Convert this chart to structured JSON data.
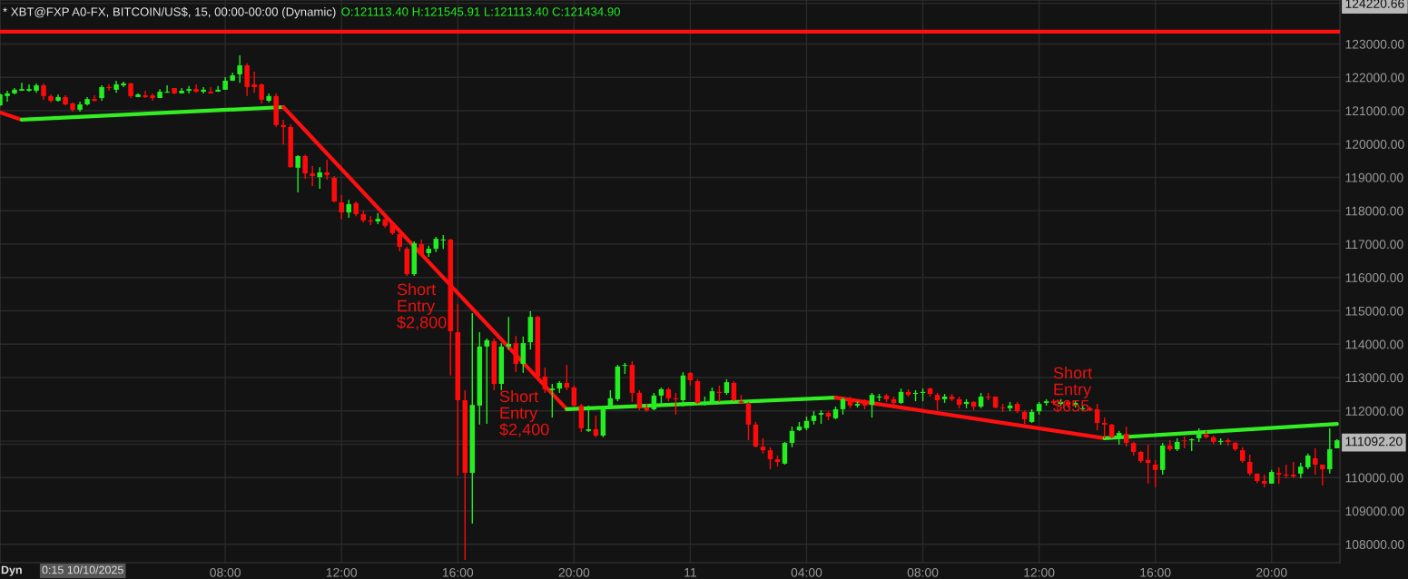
{
  "chart_data": {
    "type": "candlestick",
    "title": "* XBT@FXP A0-FX, BITCOIN/US$, 15, 00:00-00:00 (Dynamic)",
    "subtitle": "O:121113.40 H:121545.91 L:121113.40 C:121434.90",
    "x": [
      "2025-10-10T00:15",
      "2025-10-10T00:30",
      "2025-10-10T00:45",
      "2025-10-10T01:00",
      "2025-10-10T01:15",
      "2025-10-10T01:30",
      "2025-10-10T01:45",
      "2025-10-10T02:00",
      "2025-10-10T02:15",
      "2025-10-10T02:30",
      "2025-10-10T02:45",
      "2025-10-10T03:00",
      "2025-10-10T03:15",
      "2025-10-10T03:30",
      "2025-10-10T03:45",
      "2025-10-10T04:00",
      "2025-10-10T04:15",
      "2025-10-10T04:30",
      "2025-10-10T04:45",
      "2025-10-10T05:00",
      "2025-10-10T05:15",
      "2025-10-10T05:30",
      "2025-10-10T05:45",
      "2025-10-10T06:00",
      "2025-10-10T06:15",
      "2025-10-10T06:30",
      "2025-10-10T06:45",
      "2025-10-10T07:00",
      "2025-10-10T07:15",
      "2025-10-10T07:30",
      "2025-10-10T07:45",
      "2025-10-10T08:00",
      "2025-10-10T08:15",
      "2025-10-10T08:30",
      "2025-10-10T08:45",
      "2025-10-10T09:00",
      "2025-10-10T09:15",
      "2025-10-10T09:30",
      "2025-10-10T09:45",
      "2025-10-10T10:00",
      "2025-10-10T10:15",
      "2025-10-10T10:30",
      "2025-10-10T10:45",
      "2025-10-10T11:00",
      "2025-10-10T11:15",
      "2025-10-10T11:30",
      "2025-10-10T11:45",
      "2025-10-10T12:00",
      "2025-10-10T12:15",
      "2025-10-10T12:30",
      "2025-10-10T12:45",
      "2025-10-10T13:00",
      "2025-10-10T13:15",
      "2025-10-10T13:30",
      "2025-10-10T13:45",
      "2025-10-10T14:00",
      "2025-10-10T14:15",
      "2025-10-10T14:30",
      "2025-10-10T14:45",
      "2025-10-10T15:00",
      "2025-10-10T15:15",
      "2025-10-10T15:30",
      "2025-10-10T15:45",
      "2025-10-10T16:00",
      "2025-10-10T16:15",
      "2025-10-10T16:30",
      "2025-10-10T16:45",
      "2025-10-10T17:00",
      "2025-10-10T17:15",
      "2025-10-10T17:30",
      "2025-10-10T17:45",
      "2025-10-10T18:00",
      "2025-10-10T18:15",
      "2025-10-10T18:30",
      "2025-10-10T18:45",
      "2025-10-10T19:00",
      "2025-10-10T19:15",
      "2025-10-10T19:30",
      "2025-10-10T19:45",
      "2025-10-10T20:00",
      "2025-10-10T20:15",
      "2025-10-10T20:30",
      "2025-10-10T20:45",
      "2025-10-10T21:00",
      "2025-10-10T21:15",
      "2025-10-10T21:30",
      "2025-10-10T21:45",
      "2025-10-10T22:00",
      "2025-10-10T22:15",
      "2025-10-10T22:30",
      "2025-10-10T22:45",
      "2025-10-10T23:00",
      "2025-10-10T23:15",
      "2025-10-10T23:30",
      "2025-10-10T23:45",
      "2025-10-11T00:00",
      "2025-10-11T00:15",
      "2025-10-11T00:30",
      "2025-10-11T00:45",
      "2025-10-11T01:00",
      "2025-10-11T01:15",
      "2025-10-11T01:30",
      "2025-10-11T01:45",
      "2025-10-11T02:00",
      "2025-10-11T02:15",
      "2025-10-11T02:30",
      "2025-10-11T02:45",
      "2025-10-11T03:00",
      "2025-10-11T03:15",
      "2025-10-11T03:30",
      "2025-10-11T03:45",
      "2025-10-11T04:00",
      "2025-10-11T04:15",
      "2025-10-11T04:30",
      "2025-10-11T04:45",
      "2025-10-11T05:00",
      "2025-10-11T05:15",
      "2025-10-11T05:30",
      "2025-10-11T05:45",
      "2025-10-11T06:00",
      "2025-10-11T06:15",
      "2025-10-11T06:30",
      "2025-10-11T06:45",
      "2025-10-11T07:00",
      "2025-10-11T07:15",
      "2025-10-11T07:30",
      "2025-10-11T07:45",
      "2025-10-11T08:00",
      "2025-10-11T08:15",
      "2025-10-11T08:30",
      "2025-10-11T08:45",
      "2025-10-11T09:00",
      "2025-10-11T09:15",
      "2025-10-11T09:30",
      "2025-10-11T09:45",
      "2025-10-11T10:00",
      "2025-10-11T10:15",
      "2025-10-11T10:30",
      "2025-10-11T10:45",
      "2025-10-11T11:00",
      "2025-10-11T11:15",
      "2025-10-11T11:30",
      "2025-10-11T11:45",
      "2025-10-11T12:00",
      "2025-10-11T12:15",
      "2025-10-11T12:30",
      "2025-10-11T12:45",
      "2025-10-11T13:00",
      "2025-10-11T13:15",
      "2025-10-11T13:30",
      "2025-10-11T13:45",
      "2025-10-11T14:00",
      "2025-10-11T14:15",
      "2025-10-11T14:30",
      "2025-10-11T14:45",
      "2025-10-11T15:00",
      "2025-10-11T15:15",
      "2025-10-11T15:30",
      "2025-10-11T15:45",
      "2025-10-11T16:00",
      "2025-10-11T16:15",
      "2025-10-11T16:30",
      "2025-10-11T16:45",
      "2025-10-11T17:00",
      "2025-10-11T17:15",
      "2025-10-11T17:30",
      "2025-10-11T17:45",
      "2025-10-11T18:00",
      "2025-10-11T18:15",
      "2025-10-11T18:30",
      "2025-10-11T18:45",
      "2025-10-11T19:00",
      "2025-10-11T19:15",
      "2025-10-11T19:30",
      "2025-10-11T19:45",
      "2025-10-11T20:00",
      "2025-10-11T20:15",
      "2025-10-11T20:30",
      "2025-10-11T20:45",
      "2025-10-11T21:00",
      "2025-10-11T21:15",
      "2025-10-11T21:30",
      "2025-10-11T21:45",
      "2025-10-11T22:00",
      "2025-10-11T22:15"
    ],
    "ohlc": [
      [
        121160,
        121520,
        121140,
        121490
      ],
      [
        121440,
        121600,
        121270,
        121520
      ],
      [
        121520,
        121680,
        121490,
        121630
      ],
      [
        121600,
        121840,
        121600,
        121650
      ],
      [
        121600,
        121790,
        121570,
        121650
      ],
      [
        121600,
        121820,
        121540,
        121760
      ],
      [
        121760,
        121820,
        121330,
        121440
      ],
      [
        121440,
        121490,
        121250,
        121300
      ],
      [
        121300,
        121490,
        121270,
        121410
      ],
      [
        121410,
        121460,
        121160,
        121190
      ],
      [
        121220,
        121250,
        120970,
        121030
      ],
      [
        121030,
        121270,
        120970,
        121190
      ],
      [
        121190,
        121410,
        121160,
        121350
      ],
      [
        121350,
        121460,
        121270,
        121300
      ],
      [
        121380,
        121760,
        121300,
        121710
      ],
      [
        121710,
        121790,
        121600,
        121680
      ],
      [
        121630,
        121900,
        121540,
        121790
      ],
      [
        121760,
        121870,
        121710,
        121820
      ],
      [
        121820,
        121840,
        121380,
        121440
      ],
      [
        121410,
        121520,
        121410,
        121490
      ],
      [
        121460,
        121600,
        121380,
        121410
      ],
      [
        121460,
        121520,
        121300,
        121380
      ],
      [
        121380,
        121650,
        121380,
        121570
      ],
      [
        121540,
        121760,
        121540,
        121570
      ],
      [
        121680,
        121680,
        121490,
        121520
      ],
      [
        121520,
        121680,
        121520,
        121600
      ],
      [
        121600,
        121740,
        121520,
        121650
      ],
      [
        121650,
        121790,
        121540,
        121570
      ],
      [
        121570,
        121710,
        121520,
        121630
      ],
      [
        121570,
        121710,
        121520,
        121520
      ],
      [
        121570,
        121740,
        121570,
        121630
      ],
      [
        121630,
        122010,
        121630,
        121900
      ],
      [
        121900,
        122140,
        121900,
        122060
      ],
      [
        122090,
        122660,
        121840,
        122360
      ],
      [
        122360,
        122420,
        121440,
        121710
      ],
      [
        121790,
        122170,
        121540,
        121710
      ],
      [
        121790,
        121820,
        121220,
        121330
      ],
      [
        121300,
        121520,
        121250,
        121440
      ],
      [
        121440,
        121520,
        120510,
        120570
      ],
      [
        120570,
        120730,
        119990,
        120510
      ],
      [
        120510,
        120590,
        119290,
        119310
      ],
      [
        119290,
        119670,
        118550,
        119640
      ],
      [
        119640,
        119690,
        118960,
        119120
      ],
      [
        119120,
        119340,
        118740,
        119040
      ],
      [
        119010,
        119310,
        118660,
        119150
      ],
      [
        119150,
        119530,
        118930,
        119070
      ],
      [
        118990,
        119040,
        118250,
        118280
      ],
      [
        118250,
        118470,
        117740,
        117950
      ],
      [
        117950,
        118330,
        117790,
        118200
      ],
      [
        118230,
        118280,
        117840,
        117900
      ],
      [
        117900,
        118010,
        117650,
        117710
      ],
      [
        117710,
        117840,
        117570,
        117680
      ],
      [
        117680,
        117930,
        117600,
        117760
      ],
      [
        117740,
        117790,
        117490,
        117550
      ],
      [
        117600,
        117680,
        117270,
        117330
      ],
      [
        117300,
        117380,
        116780,
        116920
      ],
      [
        116860,
        116920,
        116050,
        116100
      ],
      [
        116100,
        117080,
        116050,
        117030
      ],
      [
        117000,
        117140,
        116670,
        116700
      ],
      [
        116730,
        116950,
        116620,
        116860
      ],
      [
        116860,
        117220,
        116760,
        117160
      ],
      [
        117110,
        117270,
        116860,
        117140
      ],
      [
        117140,
        117160,
        113060,
        114390
      ],
      [
        114360,
        115200,
        110060,
        112320
      ],
      [
        112320,
        112620,
        107530,
        110140
      ],
      [
        110140,
        114930,
        108620,
        112180
      ],
      [
        112160,
        114360,
        111590,
        113930
      ],
      [
        113930,
        114170,
        111610,
        114120
      ],
      [
        114090,
        114170,
        112620,
        112810
      ],
      [
        112810,
        114030,
        112620,
        113930
      ],
      [
        113930,
        114820,
        113840,
        114010
      ],
      [
        114030,
        114250,
        113160,
        113410
      ],
      [
        113410,
        114230,
        113140,
        114030
      ],
      [
        114060,
        114990,
        113840,
        114820
      ],
      [
        114820,
        114850,
        112970,
        113030
      ],
      [
        113030,
        113300,
        112540,
        112650
      ],
      [
        112620,
        112810,
        111800,
        112670
      ],
      [
        112670,
        112890,
        112540,
        112840
      ],
      [
        112840,
        113380,
        112620,
        112700
      ],
      [
        112700,
        112760,
        112130,
        112160
      ],
      [
        112160,
        112210,
        111370,
        111480
      ],
      [
        111400,
        112160,
        111370,
        111450
      ],
      [
        111450,
        111860,
        111210,
        111260
      ],
      [
        111260,
        112160,
        111210,
        112130
      ],
      [
        112130,
        112620,
        112100,
        112380
      ],
      [
        112350,
        113380,
        112290,
        113330
      ],
      [
        113350,
        113440,
        113110,
        113380
      ],
      [
        113380,
        113490,
        112270,
        112540
      ],
      [
        112540,
        112620,
        112020,
        112080
      ],
      [
        112100,
        112210,
        111970,
        112020
      ],
      [
        112050,
        112540,
        112020,
        112460
      ],
      [
        112460,
        112700,
        112210,
        112650
      ],
      [
        112650,
        112700,
        112290,
        112380
      ],
      [
        112380,
        112540,
        111890,
        112350
      ],
      [
        112320,
        113160,
        112130,
        113060
      ],
      [
        113140,
        113160,
        112760,
        112920
      ],
      [
        112890,
        112950,
        112210,
        112240
      ],
      [
        112180,
        112430,
        112160,
        112270
      ],
      [
        112210,
        112700,
        112180,
        112590
      ],
      [
        112570,
        112760,
        112270,
        112540
      ],
      [
        112540,
        112950,
        112480,
        112860
      ],
      [
        112840,
        112890,
        112290,
        112320
      ],
      [
        112290,
        112480,
        112210,
        112240
      ],
      [
        112210,
        112270,
        111120,
        111590
      ],
      [
        111590,
        111670,
        110910,
        110930
      ],
      [
        110930,
        111180,
        110720,
        110820
      ],
      [
        110820,
        110910,
        110250,
        110550
      ],
      [
        110550,
        110660,
        110330,
        110470
      ],
      [
        110420,
        111070,
        110390,
        111040
      ],
      [
        111040,
        111530,
        110910,
        111400
      ],
      [
        111420,
        111670,
        111400,
        111530
      ],
      [
        111480,
        111830,
        111420,
        111700
      ],
      [
        111700,
        111990,
        111590,
        111860
      ],
      [
        111890,
        112020,
        111610,
        111940
      ],
      [
        111940,
        111990,
        111720,
        111830
      ],
      [
        111780,
        112130,
        111750,
        112050
      ],
      [
        112050,
        112400,
        111890,
        112350
      ],
      [
        112350,
        112430,
        112080,
        112160
      ],
      [
        112160,
        112290,
        112100,
        112210
      ],
      [
        112270,
        112350,
        112050,
        112160
      ],
      [
        112180,
        112540,
        111800,
        112480
      ],
      [
        112400,
        112510,
        112290,
        112430
      ],
      [
        112460,
        112510,
        112270,
        112350
      ],
      [
        112350,
        112430,
        112160,
        112240
      ],
      [
        112240,
        112670,
        112210,
        112570
      ],
      [
        112570,
        112650,
        112430,
        112480
      ],
      [
        112510,
        112620,
        112290,
        112540
      ],
      [
        112540,
        112670,
        112290,
        112570
      ],
      [
        112670,
        112700,
        112430,
        112510
      ],
      [
        112480,
        112540,
        112020,
        112320
      ],
      [
        112350,
        112510,
        112240,
        112430
      ],
      [
        112430,
        112510,
        112290,
        112350
      ],
      [
        112350,
        112430,
        112080,
        112180
      ],
      [
        112210,
        112350,
        112080,
        112270
      ],
      [
        112270,
        112290,
        112020,
        112130
      ],
      [
        112130,
        112540,
        112080,
        112430
      ],
      [
        112430,
        112540,
        112320,
        112400
      ],
      [
        112430,
        112430,
        112080,
        112100
      ],
      [
        112100,
        112210,
        111970,
        112080
      ],
      [
        112080,
        112270,
        111990,
        112160
      ],
      [
        112210,
        112270,
        111940,
        111990
      ],
      [
        111970,
        112020,
        111610,
        111750
      ],
      [
        111670,
        112050,
        111640,
        111970
      ],
      [
        111990,
        112270,
        111890,
        112210
      ],
      [
        112240,
        112350,
        112160,
        112290
      ],
      [
        112290,
        112350,
        112180,
        112240
      ],
      [
        112210,
        112350,
        112160,
        112270
      ],
      [
        112270,
        112320,
        112100,
        112180
      ],
      [
        112160,
        112320,
        112100,
        112240
      ],
      [
        112050,
        112160,
        111990,
        112080
      ],
      [
        112080,
        112130,
        111990,
        112020
      ],
      [
        112050,
        112210,
        111420,
        111640
      ],
      [
        111640,
        111800,
        111180,
        111590
      ],
      [
        111590,
        111610,
        111180,
        111210
      ],
      [
        111210,
        111400,
        110990,
        111340
      ],
      [
        111310,
        111530,
        110930,
        111040
      ],
      [
        111040,
        111070,
        110660,
        110770
      ],
      [
        110770,
        110800,
        110440,
        110500
      ],
      [
        110530,
        110990,
        109820,
        110440
      ],
      [
        110390,
        110530,
        109710,
        110230
      ],
      [
        110230,
        111040,
        110090,
        110960
      ],
      [
        110960,
        111120,
        110800,
        110850
      ],
      [
        110850,
        111180,
        110800,
        111070
      ],
      [
        111120,
        111230,
        110880,
        111100
      ],
      [
        111120,
        111180,
        110800,
        111150
      ],
      [
        111180,
        111480,
        111070,
        111310
      ],
      [
        111290,
        111400,
        111180,
        111210
      ],
      [
        111210,
        111260,
        111010,
        111070
      ],
      [
        111070,
        111180,
        110990,
        111100
      ],
      [
        111120,
        111180,
        110960,
        111070
      ],
      [
        111040,
        111070,
        110800,
        110850
      ],
      [
        110820,
        110910,
        110440,
        110500
      ],
      [
        110470,
        110690,
        110060,
        110120
      ],
      [
        110120,
        110120,
        109840,
        109900
      ],
      [
        109900,
        110090,
        109710,
        109820
      ],
      [
        109820,
        110230,
        109820,
        110170
      ],
      [
        110140,
        110310,
        109820,
        110090
      ],
      [
        110090,
        110390,
        109980,
        110060
      ],
      [
        110090,
        110470,
        109980,
        110040
      ],
      [
        110120,
        110440,
        109980,
        110330
      ],
      [
        110310,
        110720,
        110250,
        110660
      ],
      [
        110580,
        110880,
        110090,
        110390
      ],
      [
        110390,
        110390,
        109760,
        110250
      ],
      [
        110250,
        111480,
        110120,
        110850
      ],
      [
        110880,
        111150,
        110880,
        111120
      ]
    ],
    "series": [
      {
        "type": "line",
        "color": "#ff1010",
        "x": [
          "2025-10-10T00:15",
          "2025-10-10T01:00"
        ],
        "values": [
          120950,
          120730
        ]
      },
      {
        "type": "line",
        "color": "#33ee22",
        "x": [
          "2025-10-10T01:00",
          "2025-10-10T10:00"
        ],
        "values": [
          120730,
          121110
        ]
      },
      {
        "type": "line",
        "color": "#ff1010",
        "x": [
          "2025-10-10T10:00",
          "2025-10-10T19:45"
        ],
        "values": [
          121110,
          112050
        ]
      },
      {
        "type": "line",
        "color": "#33ee22",
        "x": [
          "2025-10-10T19:45",
          "2025-10-11T05:00"
        ],
        "values": [
          112050,
          112400
        ]
      },
      {
        "type": "line",
        "color": "#ff1010",
        "x": [
          "2025-10-11T05:00",
          "2025-10-11T14:15"
        ],
        "values": [
          112400,
          111180
        ]
      },
      {
        "type": "line",
        "color": "#33ee22",
        "x": [
          "2025-10-11T14:15",
          "2025-10-11T22:15"
        ],
        "values": [
          111180,
          111610
        ]
      }
    ],
    "ref_lines": [
      {
        "axis": "y",
        "value": 123370,
        "color": "#ff1010"
      }
    ],
    "annotations": [
      "Short\nEntry\n$2,800",
      "Short\nEntry\n$2,400",
      "Short\nEntry\n$655",
      "Dyn",
      "0:15 10/10/2025"
    ],
    "xlim": [
      "2025-10-10T00:15",
      "2025-10-11T22:21"
    ],
    "xticks": [
      {
        "value": "2025-10-10T08:00",
        "label": "08:00"
      },
      {
        "value": "2025-10-10T12:00",
        "label": "12:00"
      },
      {
        "value": "2025-10-10T16:00",
        "label": "16:00"
      },
      {
        "value": "2025-10-10T20:00",
        "label": "20:00"
      },
      {
        "value": "2025-10-11T00:00",
        "label": "11"
      },
      {
        "value": "2025-10-11T04:00",
        "label": "04:00"
      },
      {
        "value": "2025-10-11T08:00",
        "label": "08:00"
      },
      {
        "value": "2025-10-11T12:00",
        "label": "12:00"
      },
      {
        "value": "2025-10-11T16:00",
        "label": "16:00"
      },
      {
        "value": "2025-10-11T20:00",
        "label": "20:00"
      }
    ],
    "ylim": [
      107450,
      124320
    ],
    "yticks": [
      {
        "value": 108000,
        "label": "108000.00"
      },
      {
        "value": 109000,
        "label": "109000.00"
      },
      {
        "value": 110000,
        "label": "110000.00"
      },
      {
        "value": 111000,
        "label": null
      },
      {
        "value": 112000,
        "label": "112000.00"
      },
      {
        "value": 113000,
        "label": "113000.00"
      },
      {
        "value": 114000,
        "label": "114000.00"
      },
      {
        "value": 115000,
        "label": "115000.00"
      },
      {
        "value": 116000,
        "label": "116000.00"
      },
      {
        "value": 117000,
        "label": "117000.00"
      },
      {
        "value": 118000,
        "label": "118000.00"
      },
      {
        "value": 119000,
        "label": "119000.00"
      },
      {
        "value": 120000,
        "label": "120000.00"
      },
      {
        "value": 121000,
        "label": "121000.00"
      },
      {
        "value": 122000,
        "label": "122000.00"
      },
      {
        "value": 123000,
        "label": "123000.00"
      },
      {
        "value": 111092.2,
        "label": "111092.20"
      },
      {
        "value": 124220.66,
        "label": "124220.66"
      }
    ],
    "grid": true
  }
}
